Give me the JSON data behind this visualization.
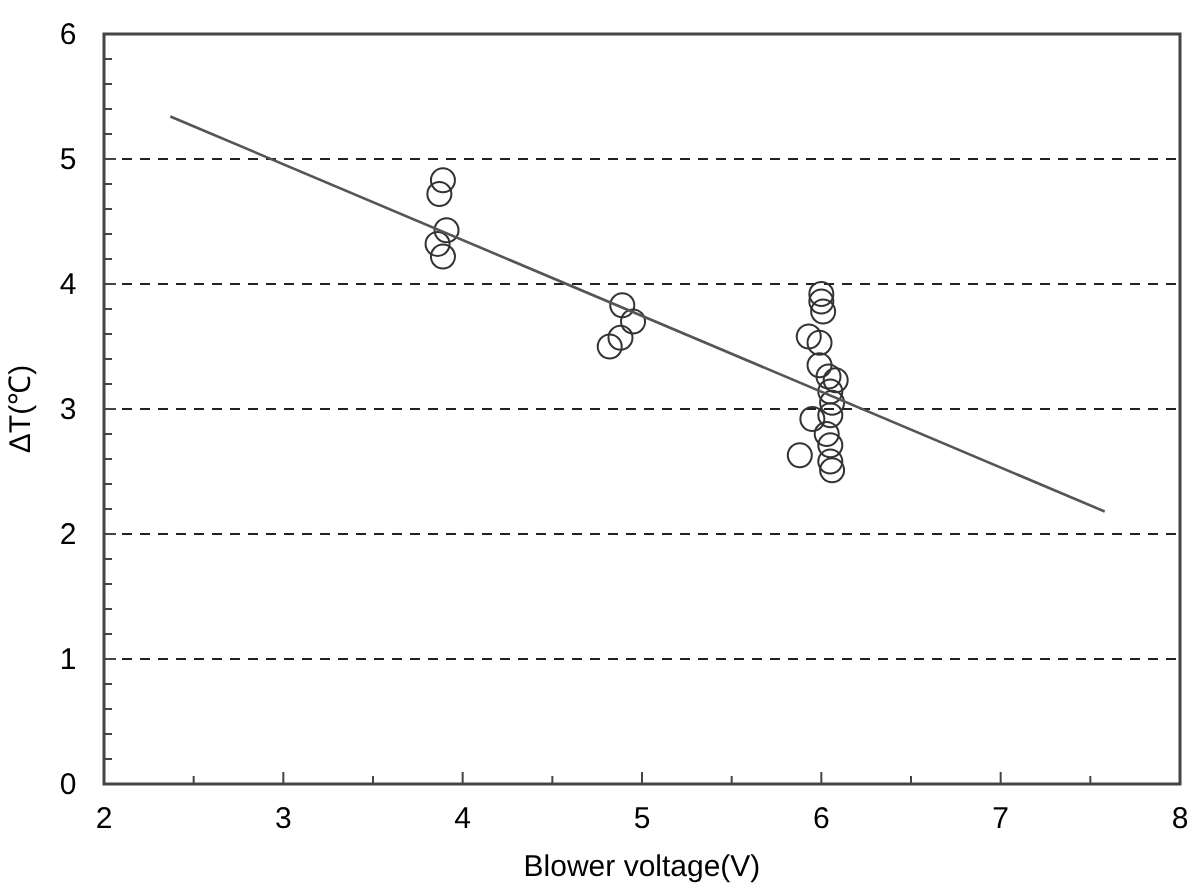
{
  "chart_data": {
    "type": "scatter",
    "xlabel": "Blower voltage(V)",
    "ylabel": "ΔT(℃)",
    "xlim": [
      2,
      8
    ],
    "ylim": [
      0,
      6
    ],
    "xticks": [
      2,
      {
        "value": 2.5,
        "label": null
      },
      3,
      {
        "value": 3.5,
        "label": null
      },
      4,
      {
        "value": 4.5,
        "label": null
      },
      5,
      {
        "value": 5.5,
        "label": null
      },
      6,
      {
        "value": 6.5,
        "label": null
      },
      7,
      {
        "value": 7.5,
        "label": null
      },
      8
    ],
    "yticks": [
      0,
      {
        "value": 0.2,
        "label": null
      },
      {
        "value": 0.4,
        "label": null
      },
      {
        "value": 0.6,
        "label": null
      },
      {
        "value": 0.8,
        "label": null
      },
      1,
      {
        "value": 1.2,
        "label": null
      },
      {
        "value": 1.4,
        "label": null
      },
      {
        "value": 1.6,
        "label": null
      },
      {
        "value": 1.8,
        "label": null
      },
      2,
      {
        "value": 2.2,
        "label": null
      },
      {
        "value": 2.4,
        "label": null
      },
      {
        "value": 2.6,
        "label": null
      },
      {
        "value": 2.8,
        "label": null
      },
      3,
      {
        "value": 3.2,
        "label": null
      },
      {
        "value": 3.4,
        "label": null
      },
      {
        "value": 3.6,
        "label": null
      },
      {
        "value": 3.8,
        "label": null
      },
      4,
      {
        "value": 4.2,
        "label": null
      },
      {
        "value": 4.4,
        "label": null
      },
      {
        "value": 4.6,
        "label": null
      },
      {
        "value": 4.8,
        "label": null
      },
      5,
      {
        "value": 5.2,
        "label": null
      },
      {
        "value": 5.4,
        "label": null
      },
      {
        "value": 5.6,
        "label": null
      },
      {
        "value": 5.8,
        "label": null
      },
      6
    ],
    "grid": "y",
    "series": [
      {
        "marker": "circle",
        "color": "#333333",
        "x": [
          3.89,
          3.87,
          3.91,
          3.86,
          3.89,
          4.89,
          4.95,
          4.88,
          4.82,
          6.0,
          6.0,
          6.01,
          5.93,
          5.99,
          5.99,
          6.04,
          6.08,
          6.05,
          6.06,
          6.05,
          5.95,
          6.03,
          6.05,
          5.88,
          6.05,
          6.06
        ],
        "values": [
          4.83,
          4.72,
          4.43,
          4.32,
          4.22,
          3.83,
          3.7,
          3.57,
          3.5,
          3.92,
          3.86,
          3.78,
          3.58,
          3.53,
          3.35,
          3.26,
          3.23,
          3.14,
          3.05,
          2.95,
          2.92,
          2.8,
          2.71,
          2.63,
          2.58,
          2.51
        ]
      },
      {
        "type": "line",
        "marker": "none",
        "color": "#555555",
        "x": [
          2.37,
          7.58
        ],
        "values": [
          5.34,
          2.18
        ]
      }
    ]
  }
}
